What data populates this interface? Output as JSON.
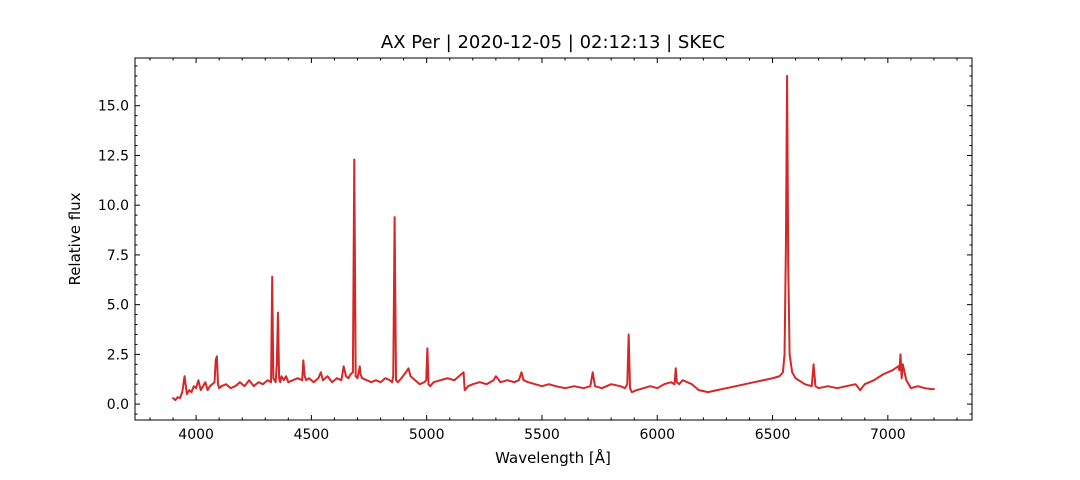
{
  "chart_data": {
    "type": "line",
    "title": "AX Per | 2020-12-05 | 02:12:13 | SKEC",
    "xlabel": "Wavelength [Å]",
    "ylabel": "Relative flux",
    "xlim": [
      3735,
      7365
    ],
    "ylim": [
      -0.8,
      17.4
    ],
    "xticks": [
      4000,
      4500,
      5000,
      5500,
      6000,
      6500,
      7000
    ],
    "xtick_labels": [
      "4000",
      "4500",
      "5000",
      "5500",
      "6000",
      "6500",
      "7000"
    ],
    "yticks": [
      0.0,
      2.5,
      5.0,
      7.5,
      10.0,
      12.5,
      15.0
    ],
    "ytick_labels": [
      "0.0",
      "2.5",
      "5.0",
      "7.5",
      "10.0",
      "12.5",
      "15.0"
    ],
    "grid": false,
    "series": [
      {
        "color": "#d62728",
        "x": [
          3900,
          3910,
          3920,
          3930,
          3940,
          3950,
          3960,
          3970,
          3980,
          3990,
          4000,
          4010,
          4020,
          4030,
          4040,
          4050,
          4060,
          4070,
          4080,
          4085,
          4090,
          4095,
          4100,
          4110,
          4130,
          4150,
          4170,
          4190,
          4210,
          4230,
          4250,
          4270,
          4290,
          4310,
          4325,
          4330,
          4335,
          4340,
          4345,
          4350,
          4355,
          4360,
          4365,
          4370,
          4380,
          4390,
          4400,
          4420,
          4440,
          4460,
          4465,
          4471,
          4477,
          4490,
          4510,
          4530,
          4541,
          4550,
          4570,
          4590,
          4610,
          4630,
          4640,
          4650,
          4660,
          4670,
          4680,
          4686,
          4692,
          4700,
          4710,
          4713,
          4720,
          4740,
          4760,
          4780,
          4800,
          4820,
          4840,
          4850,
          4855,
          4861,
          4867,
          4875,
          4890,
          4910,
          4921,
          4930,
          4950,
          4970,
          4990,
          4998,
          5003,
          5008,
          5015,
          5030,
          5060,
          5090,
          5120,
          5150,
          5160,
          5165,
          5180,
          5200,
          5230,
          5260,
          5290,
          5300,
          5320,
          5350,
          5380,
          5400,
          5411,
          5420,
          5440,
          5470,
          5500,
          5530,
          5560,
          5600,
          5640,
          5680,
          5710,
          5720,
          5730,
          5760,
          5800,
          5840,
          5860,
          5870,
          5876,
          5882,
          5890,
          5910,
          5940,
          5970,
          6000,
          6030,
          6060,
          6075,
          6080,
          6085,
          6095,
          6110,
          6130,
          6150,
          6180,
          6220,
          6260,
          6300,
          6340,
          6380,
          6420,
          6460,
          6500,
          6530,
          6545,
          6552,
          6558,
          6563,
          6568,
          6574,
          6585,
          6600,
          6640,
          6670,
          6678,
          6686,
          6700,
          6740,
          6780,
          6820,
          6860,
          6880,
          6900,
          6940,
          6980,
          7020,
          7045,
          7050,
          7055,
          7060,
          7065,
          7080,
          7100,
          7130,
          7160,
          7190,
          7200
        ],
        "y": [
          0.3,
          0.2,
          0.35,
          0.3,
          0.6,
          1.4,
          0.5,
          0.7,
          0.6,
          0.9,
          0.8,
          1.2,
          0.7,
          0.9,
          1.1,
          0.7,
          0.9,
          1.0,
          1.1,
          2.2,
          2.4,
          1.0,
          0.8,
          0.9,
          1.0,
          0.8,
          0.9,
          1.1,
          0.9,
          1.2,
          0.9,
          1.1,
          1.0,
          1.2,
          1.1,
          6.4,
          1.3,
          1.2,
          1.1,
          2.0,
          4.6,
          1.3,
          1.1,
          1.4,
          1.2,
          1.4,
          1.1,
          1.2,
          1.3,
          1.2,
          2.2,
          1.4,
          1.2,
          1.3,
          1.1,
          1.3,
          1.6,
          1.2,
          1.4,
          1.1,
          1.3,
          1.2,
          1.9,
          1.4,
          1.3,
          1.5,
          1.6,
          12.3,
          1.4,
          1.3,
          1.9,
          1.5,
          1.3,
          1.2,
          1.1,
          1.2,
          1.1,
          1.3,
          1.2,
          1.1,
          1.4,
          9.4,
          1.2,
          1.1,
          1.3,
          1.6,
          1.8,
          1.4,
          1.2,
          1.0,
          1.1,
          1.2,
          2.8,
          1.0,
          0.9,
          1.1,
          1.2,
          1.3,
          1.2,
          1.5,
          1.6,
          0.7,
          0.9,
          1.0,
          1.1,
          1.0,
          1.2,
          1.4,
          1.1,
          1.2,
          1.1,
          1.2,
          1.6,
          1.2,
          1.1,
          1.0,
          0.9,
          1.0,
          0.9,
          0.8,
          0.9,
          0.8,
          0.9,
          1.6,
          0.9,
          0.8,
          1.0,
          0.9,
          0.8,
          1.0,
          3.5,
          0.8,
          0.6,
          0.7,
          0.8,
          0.9,
          0.8,
          1.0,
          1.1,
          1.0,
          1.8,
          1.1,
          1.0,
          1.2,
          1.1,
          1.0,
          0.7,
          0.6,
          0.7,
          0.8,
          0.9,
          1.0,
          1.1,
          1.2,
          1.3,
          1.4,
          1.6,
          2.5,
          8.0,
          16.5,
          7.0,
          2.5,
          1.6,
          1.3,
          1.0,
          0.9,
          2.0,
          0.9,
          0.8,
          0.9,
          0.8,
          0.9,
          1.0,
          0.7,
          1.0,
          1.2,
          1.5,
          1.7,
          1.9,
          1.7,
          2.5,
          1.3,
          2.0,
          1.2,
          0.8,
          0.9,
          0.8,
          0.75,
          0.75
        ]
      }
    ]
  }
}
